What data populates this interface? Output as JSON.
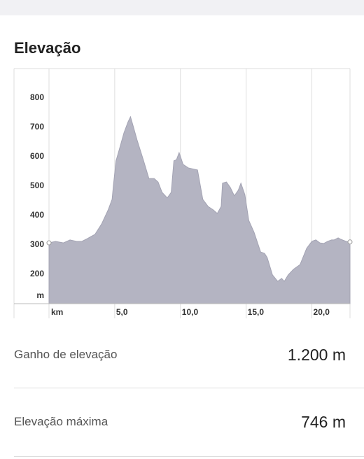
{
  "header": {
    "title": "Elevação"
  },
  "chart_data": {
    "type": "area",
    "x_label": "km",
    "y_label": "m",
    "x": [
      0.0,
      0.5,
      1.1,
      1.6,
      2.1,
      2.5,
      2.9,
      3.5,
      4.0,
      4.5,
      4.8,
      4.9,
      5.1,
      5.4,
      5.7,
      6.0,
      6.2,
      6.4,
      6.7,
      7.2,
      7.6,
      8.0,
      8.3,
      8.6,
      9.0,
      9.3,
      9.5,
      9.7,
      9.9,
      10.2,
      10.6,
      11.1,
      11.3,
      11.7,
      12.1,
      12.5,
      12.8,
      13.1,
      13.2,
      13.5,
      13.8,
      14.1,
      14.4,
      14.6,
      14.9,
      15.2,
      15.6,
      16.1,
      16.4,
      16.6,
      17.0,
      17.4,
      17.7,
      17.9,
      18.2,
      18.6,
      19.1,
      19.6,
      20.0,
      20.3,
      20.6,
      20.9,
      21.2,
      21.5,
      21.7,
      22.0,
      22.2,
      22.6,
      22.9
    ],
    "values": [
      307,
      312,
      307,
      317,
      312,
      312,
      321,
      336,
      371,
      419,
      455,
      502,
      586,
      633,
      681,
      717,
      736,
      705,
      657,
      586,
      526,
      526,
      514,
      479,
      460,
      479,
      586,
      590,
      614,
      574,
      562,
      557,
      555,
      455,
      431,
      419,
      407,
      431,
      510,
      514,
      495,
      467,
      486,
      510,
      471,
      383,
      343,
      276,
      271,
      257,
      198,
      176,
      186,
      176,
      198,
      217,
      233,
      288,
      312,
      317,
      307,
      305,
      312,
      317,
      317,
      324,
      319,
      312,
      310
    ],
    "color": "#b4b4c2",
    "xlim": [
      0,
      22.9
    ],
    "ylim": [
      100,
      900
    ],
    "xticks": [
      {
        "value": 5,
        "label": "5,0"
      },
      {
        "value": 10,
        "label": "10,0"
      },
      {
        "value": 15,
        "label": "15,0"
      },
      {
        "value": 20,
        "label": "20,0"
      }
    ],
    "yticks": [
      200,
      300,
      400,
      500,
      600,
      700,
      800
    ],
    "grid": true
  },
  "stats": [
    {
      "label": "Ganho de elevação",
      "value": "1.200 m"
    },
    {
      "label": "Elevação máxima",
      "value": "746 m"
    }
  ]
}
